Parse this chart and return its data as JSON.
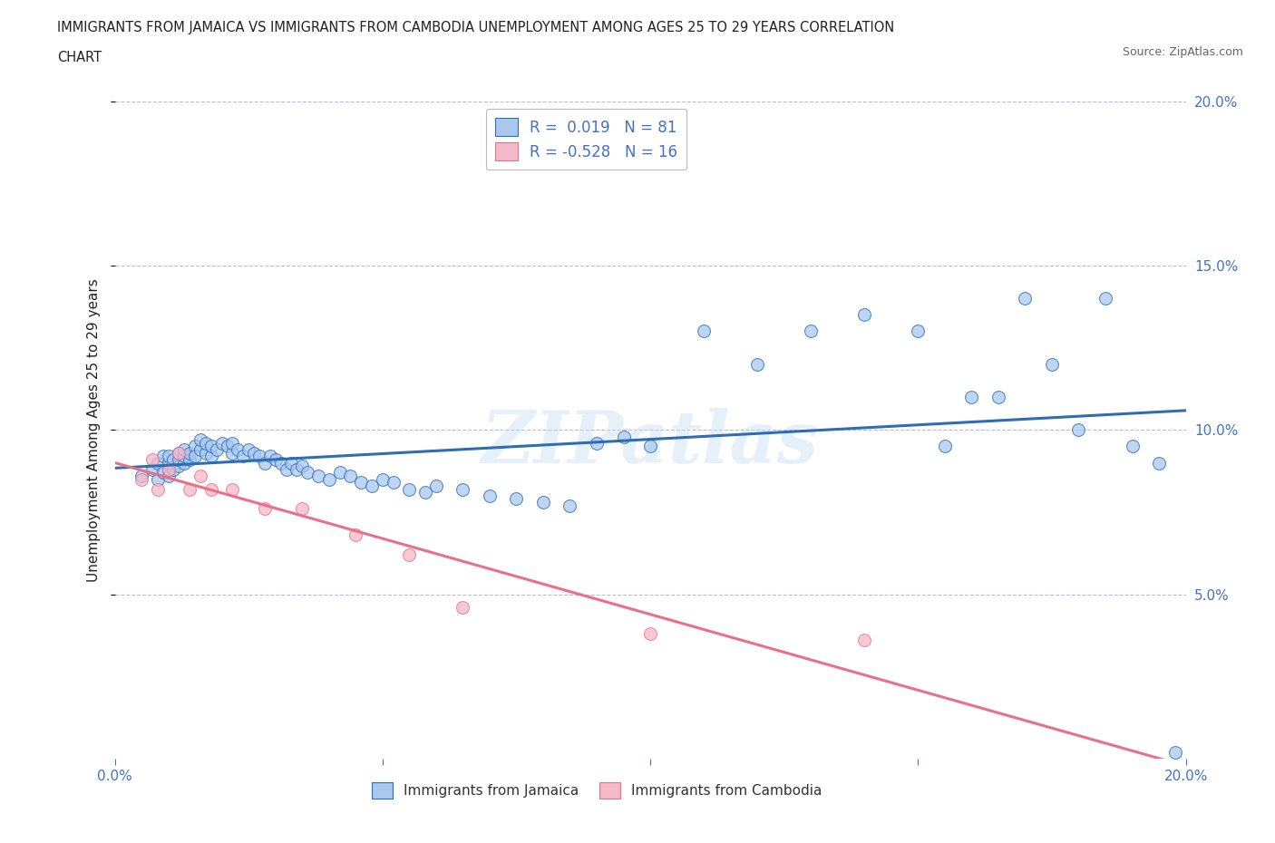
{
  "title_line1": "IMMIGRANTS FROM JAMAICA VS IMMIGRANTS FROM CAMBODIA UNEMPLOYMENT AMONG AGES 25 TO 29 YEARS CORRELATION",
  "title_line2": "CHART",
  "source": "Source: ZipAtlas.com",
  "ylabel": "Unemployment Among Ages 25 to 29 years",
  "xlim": [
    0.0,
    0.2
  ],
  "ylim": [
    0.0,
    0.2
  ],
  "xticks": [
    0.0,
    0.05,
    0.1,
    0.15,
    0.2
  ],
  "yticks": [
    0.05,
    0.1,
    0.15,
    0.2
  ],
  "background_color": "#ffffff",
  "grid_color": "#aaaacc",
  "jamaica_color": "#a8c8f0",
  "cambodia_color": "#f5b8c8",
  "jamaica_line_color": "#2e6db4",
  "cambodia_line_color": "#e8708a",
  "R_jamaica": 0.019,
  "N_jamaica": 81,
  "R_cambodia": -0.528,
  "N_cambodia": 16,
  "jamaica_x": [
    0.005,
    0.007,
    0.008,
    0.008,
    0.009,
    0.009,
    0.01,
    0.01,
    0.01,
    0.01,
    0.011,
    0.011,
    0.012,
    0.012,
    0.012,
    0.013,
    0.013,
    0.013,
    0.014,
    0.014,
    0.015,
    0.015,
    0.016,
    0.016,
    0.017,
    0.017,
    0.018,
    0.018,
    0.019,
    0.02,
    0.021,
    0.022,
    0.022,
    0.023,
    0.024,
    0.025,
    0.026,
    0.027,
    0.028,
    0.029,
    0.03,
    0.031,
    0.032,
    0.033,
    0.034,
    0.035,
    0.036,
    0.038,
    0.04,
    0.042,
    0.044,
    0.046,
    0.048,
    0.05,
    0.052,
    0.055,
    0.058,
    0.06,
    0.065,
    0.07,
    0.075,
    0.08,
    0.085,
    0.09,
    0.095,
    0.1,
    0.11,
    0.12,
    0.13,
    0.14,
    0.15,
    0.155,
    0.16,
    0.165,
    0.17,
    0.175,
    0.18,
    0.185,
    0.19,
    0.195,
    0.198
  ],
  "jamaica_y": [
    0.086,
    0.088,
    0.085,
    0.09,
    0.087,
    0.092,
    0.088,
    0.09,
    0.092,
    0.086,
    0.088,
    0.091,
    0.089,
    0.091,
    0.093,
    0.09,
    0.092,
    0.094,
    0.091,
    0.093,
    0.095,
    0.092,
    0.094,
    0.097,
    0.093,
    0.096,
    0.092,
    0.095,
    0.094,
    0.096,
    0.095,
    0.093,
    0.096,
    0.094,
    0.092,
    0.094,
    0.093,
    0.092,
    0.09,
    0.092,
    0.091,
    0.09,
    0.088,
    0.09,
    0.088,
    0.089,
    0.087,
    0.086,
    0.085,
    0.087,
    0.086,
    0.084,
    0.083,
    0.085,
    0.084,
    0.082,
    0.081,
    0.083,
    0.082,
    0.08,
    0.079,
    0.078,
    0.077,
    0.096,
    0.098,
    0.095,
    0.13,
    0.12,
    0.13,
    0.135,
    0.13,
    0.095,
    0.11,
    0.11,
    0.14,
    0.12,
    0.1,
    0.14,
    0.095,
    0.09,
    0.002
  ],
  "cambodia_x": [
    0.005,
    0.007,
    0.008,
    0.01,
    0.012,
    0.014,
    0.016,
    0.018,
    0.022,
    0.028,
    0.035,
    0.045,
    0.055,
    0.065,
    0.1,
    0.14
  ],
  "cambodia_y": [
    0.085,
    0.091,
    0.082,
    0.088,
    0.093,
    0.082,
    0.086,
    0.082,
    0.082,
    0.076,
    0.076,
    0.068,
    0.062,
    0.046,
    0.038,
    0.036
  ]
}
